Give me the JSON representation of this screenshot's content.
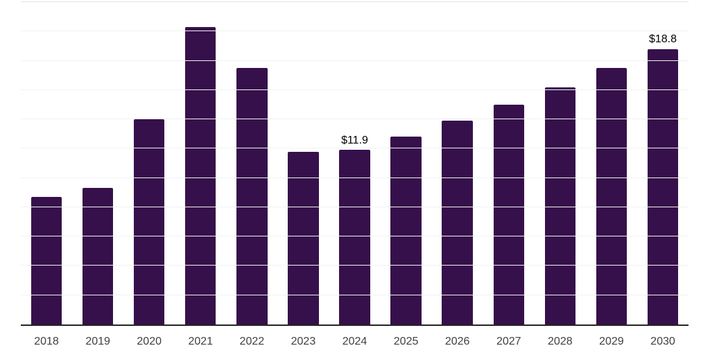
{
  "chart_data": {
    "type": "bar",
    "title": "",
    "xlabel": "",
    "ylabel": "",
    "categories": [
      "2018",
      "2019",
      "2020",
      "2021",
      "2022",
      "2023",
      "2024",
      "2025",
      "2026",
      "2027",
      "2028",
      "2029",
      "2030"
    ],
    "values": [
      8.7,
      9.3,
      14.0,
      20.3,
      17.5,
      11.8,
      11.9,
      12.8,
      13.9,
      15.0,
      16.2,
      17.5,
      18.8
    ],
    "data_labels": [
      "",
      "",
      "",
      "",
      "",
      "",
      "$11.9",
      "",
      "",
      "",
      "",
      "",
      "$18.8"
    ],
    "ylim": [
      0,
      22
    ],
    "grid_step": 2,
    "grid": true,
    "legend": false,
    "y_tick_labels_visible": false,
    "colors": {
      "bar": "#36104a",
      "gridline": "#f2f2f2",
      "plot_top_border": "#e2e2e2",
      "axis_line": "#242424",
      "tick_label": "#404040",
      "data_label": "#000000",
      "background": "#ffffff"
    }
  }
}
